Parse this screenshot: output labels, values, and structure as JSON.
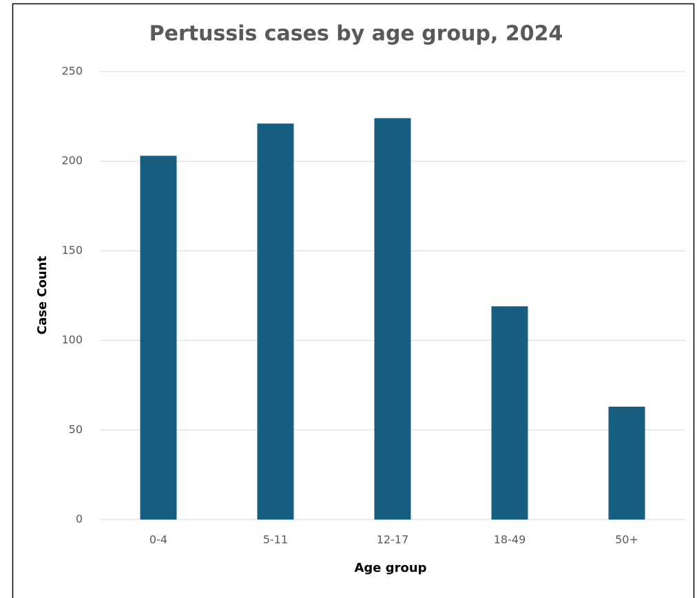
{
  "chart_data": {
    "type": "bar",
    "title": "Pertussis cases by age group, 2024",
    "x_label": "Age group",
    "y_label": "Case Count",
    "categories": [
      "0-4",
      "5-11",
      "12-17",
      "18-49",
      "50+"
    ],
    "values": [
      203,
      221,
      224,
      119,
      63
    ],
    "color": "#175e80",
    "ylim": [
      0,
      250
    ],
    "yticks": [
      0,
      50,
      100,
      150,
      200,
      250
    ],
    "grid": true
  }
}
